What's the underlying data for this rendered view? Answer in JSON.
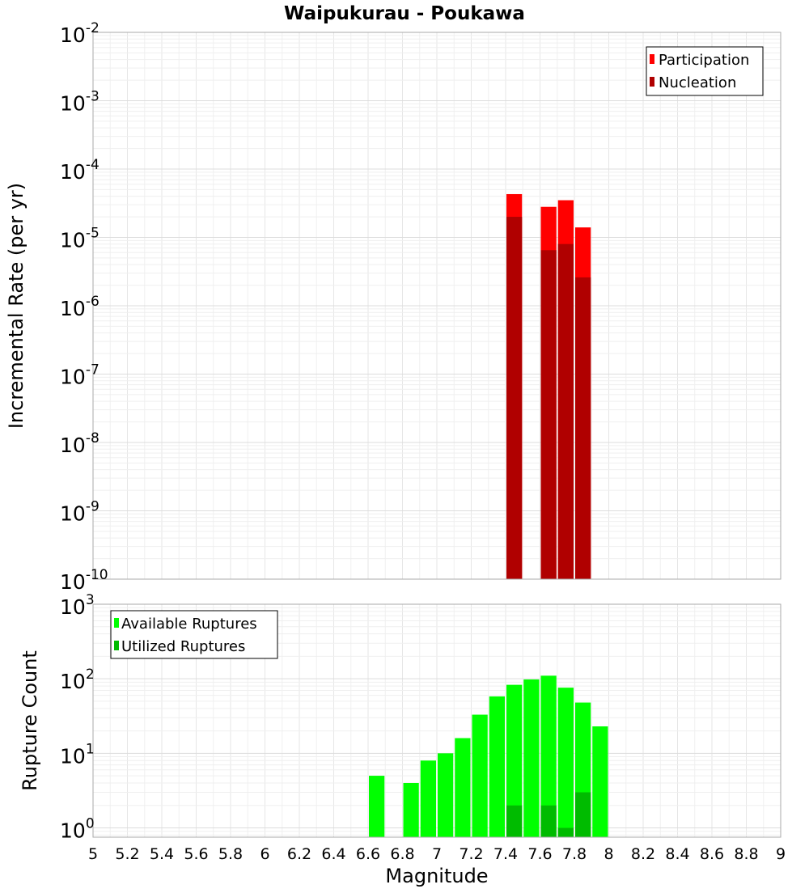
{
  "chart_data": [
    {
      "type": "bar",
      "title": "Waipukurau - Poukawa",
      "xlabel": "Magnitude",
      "ylabel": "Incremental Rate (per yr)",
      "yscale": "log",
      "xlim": [
        5,
        9
      ],
      "ylim": [
        1e-10,
        0.01
      ],
      "y_tick_mantissa": [
        "10",
        "10",
        "10",
        "10",
        "10",
        "10",
        "10",
        "10",
        "10"
      ],
      "y_tick_exponents": [
        "-10",
        "-9",
        "-8",
        "-7",
        "-6",
        "-5",
        "-4",
        "-3",
        "-2"
      ],
      "bin_width": 0.1,
      "legend_position": "top-right",
      "series": [
        {
          "name": "Participation",
          "color": "#ff0000",
          "x": [
            7.45,
            7.65,
            7.75,
            7.85
          ],
          "values": [
            4.3e-05,
            2.8e-05,
            3.5e-05,
            1.4e-05
          ]
        },
        {
          "name": "Nucleation",
          "color": "#b00000",
          "x": [
            7.45,
            7.65,
            7.75,
            7.85
          ],
          "values": [
            2e-05,
            6.5e-06,
            8e-06,
            2.6e-06
          ]
        }
      ]
    },
    {
      "type": "bar",
      "xlabel": "Magnitude",
      "ylabel": "Rupture Count",
      "yscale": "log",
      "xlim": [
        5,
        9
      ],
      "ylim": [
        0.75,
        1000
      ],
      "y_tick_mantissa": [
        "10",
        "10",
        "10",
        "10"
      ],
      "y_tick_exponents": [
        "0",
        "1",
        "2",
        "3"
      ],
      "x_ticks": [
        "5",
        "5.2",
        "5.4",
        "5.6",
        "5.8",
        "6",
        "6.2",
        "6.4",
        "6.6",
        "6.8",
        "7",
        "7.2",
        "7.4",
        "7.6",
        "7.8",
        "8",
        "8.2",
        "8.4",
        "8.6",
        "8.8",
        "9"
      ],
      "bin_width": 0.1,
      "legend_position": "top-left",
      "series": [
        {
          "name": "Available Ruptures",
          "color": "#00ff00",
          "x": [
            6.65,
            6.85,
            6.95,
            7.05,
            7.15,
            7.25,
            7.35,
            7.45,
            7.55,
            7.65,
            7.75,
            7.85,
            7.95
          ],
          "values": [
            5,
            4,
            8,
            10,
            16,
            33,
            58,
            83,
            98,
            110,
            76,
            48,
            23
          ]
        },
        {
          "name": "Utilized Ruptures",
          "color": "#00bb00",
          "x": [
            7.45,
            7.65,
            7.75,
            7.85
          ],
          "values": [
            2,
            2,
            1,
            3
          ]
        }
      ]
    }
  ]
}
